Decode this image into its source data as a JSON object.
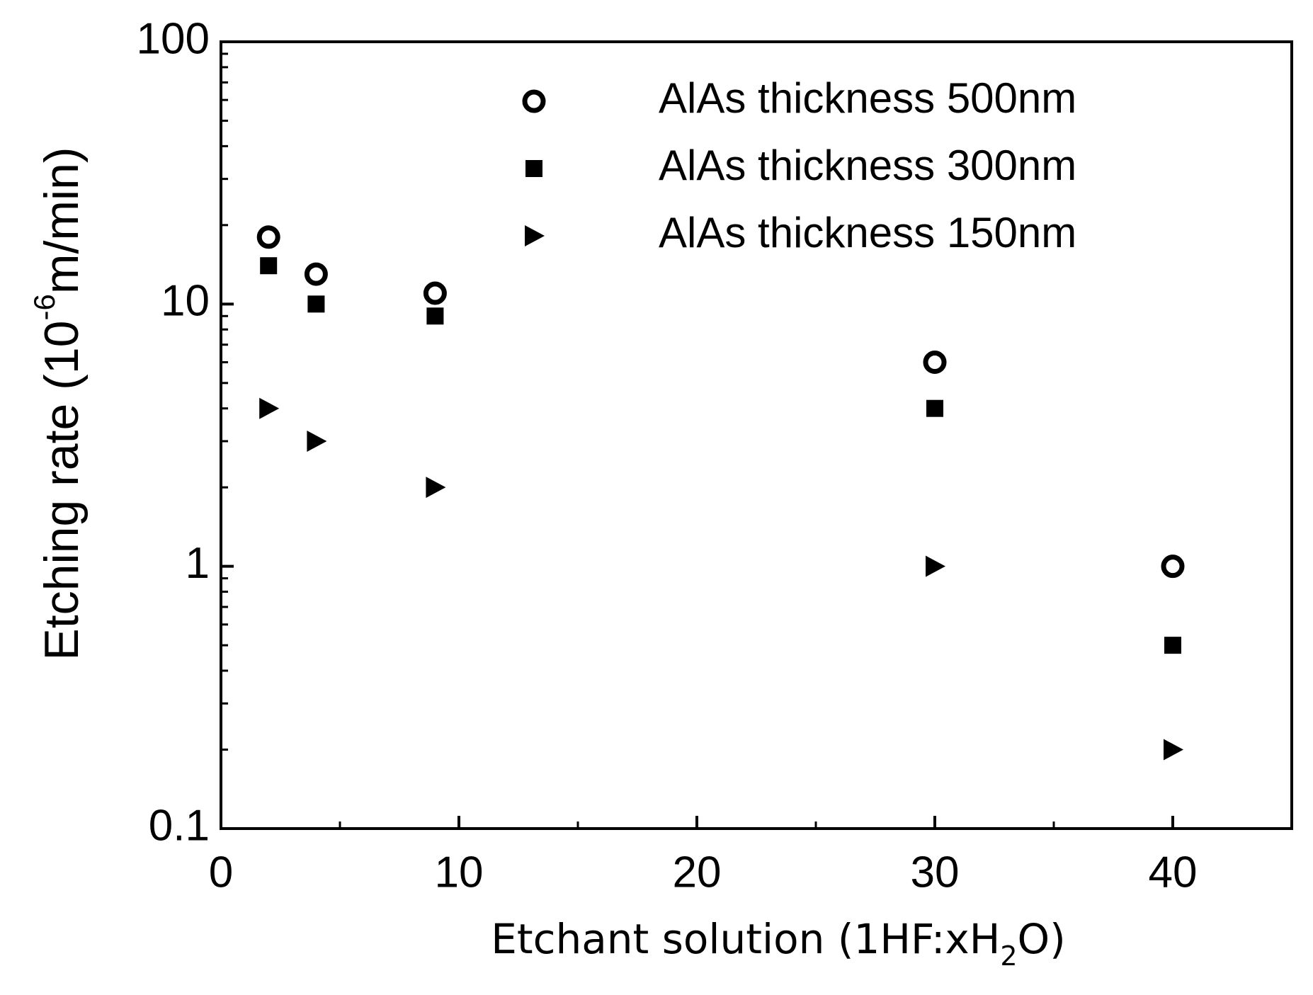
{
  "chart_data": {
    "type": "scatter",
    "xlabel": [
      "Etchant solution (1HF:xH",
      "2",
      "O)"
    ],
    "ylabel": [
      "Etching rate (10",
      "-6",
      "m/min)"
    ],
    "x": [
      2,
      4,
      9,
      30,
      40
    ],
    "series": [
      {
        "name": "AlAs thickness 500nm",
        "color": "#000000",
        "marker": "open-circle",
        "values": [
          18,
          13,
          11,
          6,
          1
        ]
      },
      {
        "name": "AlAs thickness 300nm",
        "color": "#000000",
        "marker": "square",
        "values": [
          14,
          10,
          9,
          4,
          0.5
        ]
      },
      {
        "name": "AlAs thickness 150nm",
        "color": "#000000",
        "marker": "triangle-right",
        "values": [
          4,
          3,
          2,
          1,
          0.2
        ]
      }
    ],
    "xlim": [
      0,
      45
    ],
    "xticks": [
      0,
      10,
      20,
      30,
      40
    ],
    "xminorticks": [
      5,
      15,
      25,
      35
    ],
    "ylim": [
      0.1,
      100
    ],
    "yticks": [
      0.1,
      1,
      10,
      100
    ],
    "yminorticks": [
      0.2,
      0.3,
      0.4,
      0.5,
      0.6,
      0.7,
      0.8,
      0.9,
      2,
      3,
      4,
      5,
      6,
      7,
      8,
      9,
      20,
      30,
      40,
      50,
      60,
      70,
      80,
      90
    ],
    "ylog": true,
    "grid": false,
    "legend": "upper right"
  }
}
